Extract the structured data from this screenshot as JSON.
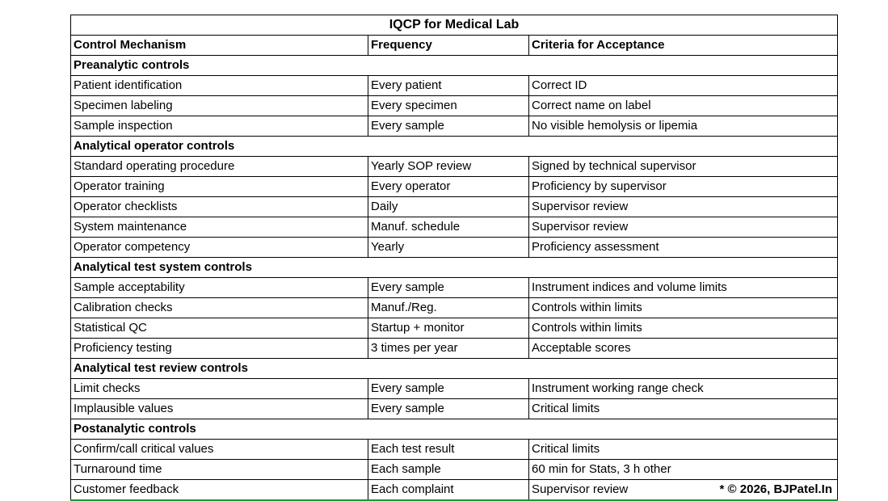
{
  "page": {
    "background_color": "#ffffff"
  },
  "table": {
    "title": "IQCP for Medical Lab",
    "columns": [
      "Control Mechanism",
      "Frequency",
      "Criteria for Acceptance"
    ],
    "border_color": "#000000",
    "bottom_border_color": "#1e9639",
    "sections": [
      {
        "name": "Preanalytic controls",
        "rows": [
          [
            "Patient identification",
            "Every patient",
            "Correct ID"
          ],
          [
            "Specimen labeling",
            "Every specimen",
            "Correct name on label"
          ],
          [
            "Sample inspection",
            "Every sample",
            "No visible hemolysis or lipemia"
          ]
        ]
      },
      {
        "name": "Analytical operator controls",
        "rows": [
          [
            "Standard operating procedure",
            "Yearly SOP review",
            "Signed by technical supervisor"
          ],
          [
            "Operator training",
            "Every operator",
            "Proficiency by supervisor"
          ],
          [
            "Operator checklists",
            "Daily",
            "Supervisor review"
          ],
          [
            "System maintenance",
            "Manuf. schedule",
            "Supervisor review"
          ],
          [
            "Operator competency",
            "Yearly",
            "Proficiency assessment"
          ]
        ]
      },
      {
        "name": "Analytical test system controls",
        "rows": [
          [
            "Sample acceptability",
            "Every sample",
            "Instrument indices and volume limits"
          ],
          [
            "Calibration checks",
            "Manuf./Reg.",
            "Controls within limits"
          ],
          [
            "Statistical QC",
            "Startup + monitor",
            "Controls within limits"
          ],
          [
            "Proficiency testing",
            "3 times per year",
            "Acceptable scores"
          ]
        ]
      },
      {
        "name": "Analytical test review controls",
        "rows": [
          [
            "Limit checks",
            "Every sample",
            "Instrument working range check"
          ],
          [
            "Implausible values",
            "Every sample",
            "Critical limits"
          ]
        ]
      },
      {
        "name": "Postanalytic controls",
        "rows": [
          [
            "Confirm/call critical values",
            "Each test result",
            "Critical limits"
          ],
          [
            "Turnaround time",
            "Each sample",
            "60 min for Stats, 3 h other"
          ],
          [
            "Customer feedback",
            "Each complaint",
            "Supervisor review"
          ]
        ]
      }
    ],
    "copyright_note": "* © 2026, BJPatel.In"
  }
}
